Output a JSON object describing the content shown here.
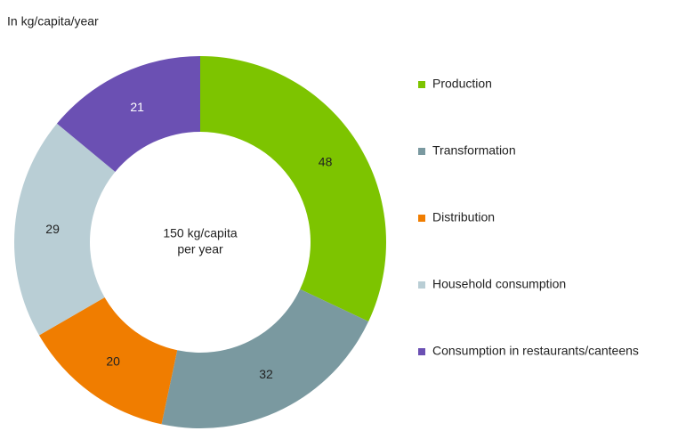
{
  "chart_data": {
    "type": "donut",
    "subtitle": "In kg/capita/year",
    "categories": [
      "Production",
      "Transformation",
      "Distribution",
      "Household consumption",
      "Consumption in restaurants/canteens"
    ],
    "values": [
      48,
      32,
      20,
      29,
      21
    ],
    "colors": [
      "#7dc400",
      "#7a99a0",
      "#f07d00",
      "#b9ced5",
      "#6b50b3"
    ],
    "center_label": [
      "150 kg/capita",
      "per year"
    ],
    "legend": "right"
  }
}
